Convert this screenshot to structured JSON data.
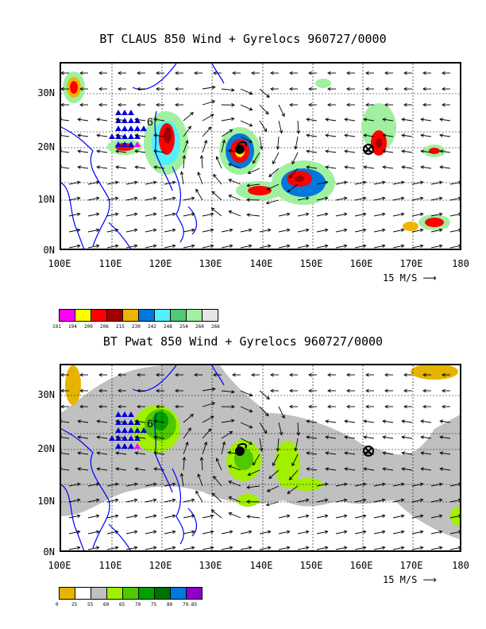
{
  "top": {
    "title": "BT CLAUS 850 Wind + Gyrelocs 960727/0000",
    "y_ticks": [
      "30N",
      "20N",
      "10N",
      "0N"
    ],
    "x_ticks": [
      "100E",
      "110E",
      "120E",
      "130E",
      "140E",
      "150E",
      "160E",
      "170E",
      "180"
    ],
    "vector_scale": "15 M/S",
    "colorbar": {
      "colors": [
        "#ff00ff",
        "#ffff00",
        "#ff0000",
        "#a00000",
        "#f0b400",
        "#0078dc",
        "#50f0ff",
        "#50c878",
        "#a0f0a0",
        "#e6e6e6"
      ],
      "labels": [
        "191",
        "194",
        "200",
        "206",
        "215",
        "230",
        "242",
        "248",
        "254",
        "260",
        "266"
      ]
    }
  },
  "bottom": {
    "title": "BT Pwat 850 Wind + Gyrelocs 960727/0000",
    "y_ticks": [
      "30N",
      "20N",
      "10N",
      "0N"
    ],
    "x_ticks": [
      "100E",
      "110E",
      "120E",
      "130E",
      "140E",
      "150E",
      "160E",
      "170E",
      "180"
    ],
    "vector_scale": "15 M/S",
    "colorbar": {
      "colors": [
        "#e6b400",
        "#ffffff",
        "#c0c0c0",
        "#a0f000",
        "#50c800",
        "#00a000",
        "#007000",
        "#0078dc",
        "#8c00c8"
      ],
      "labels": [
        "0",
        "25",
        "55",
        "60",
        "65",
        "70",
        "75",
        "80",
        "79.85"
      ]
    }
  }
}
